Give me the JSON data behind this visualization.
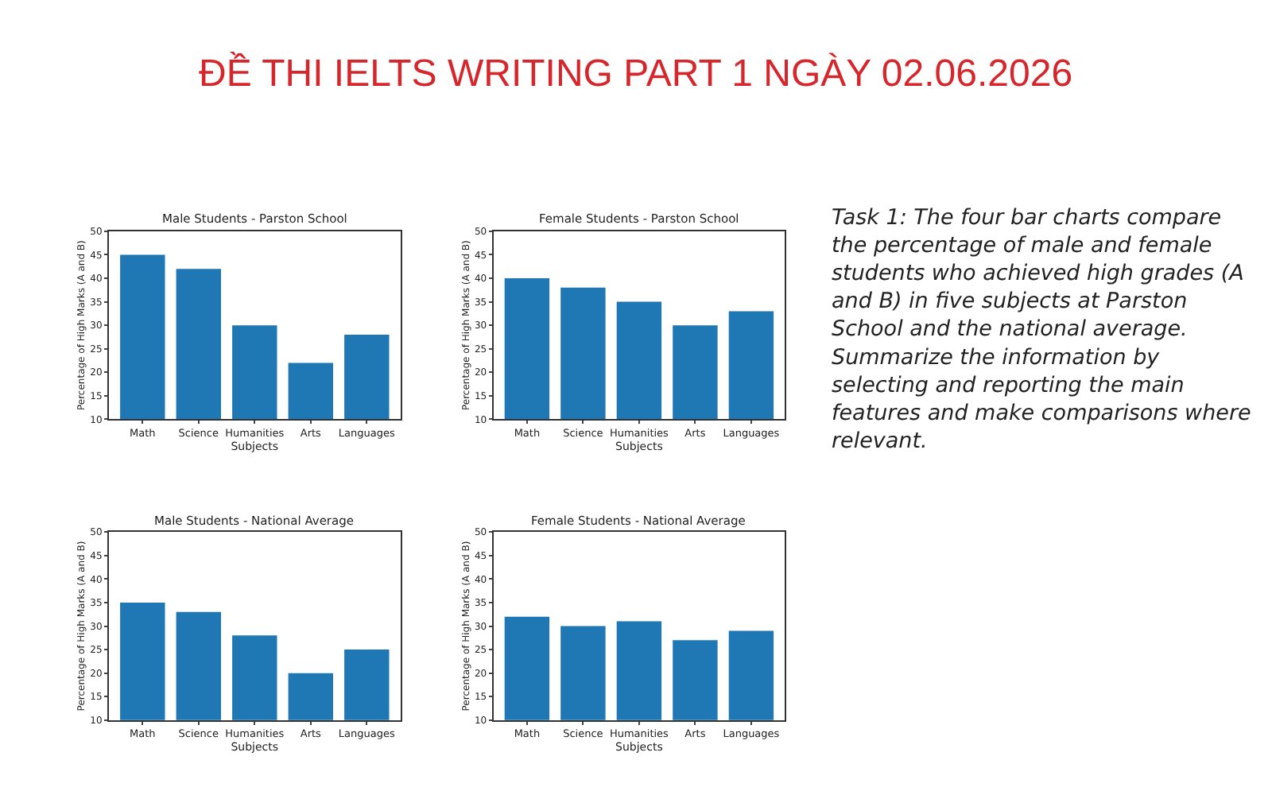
{
  "chart_data": [
    {
      "type": "bar",
      "title": "Male Students - Parston School",
      "xlabel": "Subjects",
      "ylabel": "Percentage of High Marks (A and B)",
      "categories": [
        "Math",
        "Science",
        "Humanities",
        "Arts",
        "Languages"
      ],
      "values": [
        45,
        42,
        30,
        22,
        28
      ],
      "color": "#1f77b4",
      "ylim": [
        10,
        50
      ],
      "yticks": [
        10,
        15,
        20,
        25,
        30,
        35,
        40,
        45,
        50
      ]
    },
    {
      "type": "bar",
      "title": "Female Students - Parston School",
      "xlabel": "Subjects",
      "ylabel": "Percentage of High Marks (A and B)",
      "categories": [
        "Math",
        "Science",
        "Humanities",
        "Arts",
        "Languages"
      ],
      "values": [
        40,
        38,
        35,
        30,
        33
      ],
      "color": "#1f77b4",
      "ylim": [
        10,
        50
      ],
      "yticks": [
        10,
        15,
        20,
        25,
        30,
        35,
        40,
        45,
        50
      ]
    },
    {
      "type": "bar",
      "title": "Male Students - National Average",
      "xlabel": "Subjects",
      "ylabel": "Percentage of High Marks (A and B)",
      "categories": [
        "Math",
        "Science",
        "Humanities",
        "Arts",
        "Languages"
      ],
      "values": [
        35,
        33,
        28,
        20,
        25
      ],
      "color": "#1f77b4",
      "ylim": [
        10,
        50
      ],
      "yticks": [
        10,
        15,
        20,
        25,
        30,
        35,
        40,
        45,
        50
      ]
    },
    {
      "type": "bar",
      "title": "Female Students - National Average",
      "xlabel": "Subjects",
      "ylabel": "Percentage of High Marks (A and B)",
      "categories": [
        "Math",
        "Science",
        "Humanities",
        "Arts",
        "Languages"
      ],
      "values": [
        32,
        30,
        31,
        27,
        29
      ],
      "color": "#1f77b4",
      "ylim": [
        10,
        50
      ],
      "yticks": [
        10,
        15,
        20,
        25,
        30,
        35,
        40,
        45,
        50
      ]
    },
    {
      "type": "other",
      "title": "ĐỀ THI IELTS WRITING PART 1 NGÀY 02.06.2026",
      "annotations": [
        "Task 1: The four bar charts compare the percentage of male and female students who achieved high grades (A and B) in five subjects at Parston School and the national average. Summarize the information by selecting and reporting the main features and make comparisons where relevant."
      ]
    }
  ]
}
